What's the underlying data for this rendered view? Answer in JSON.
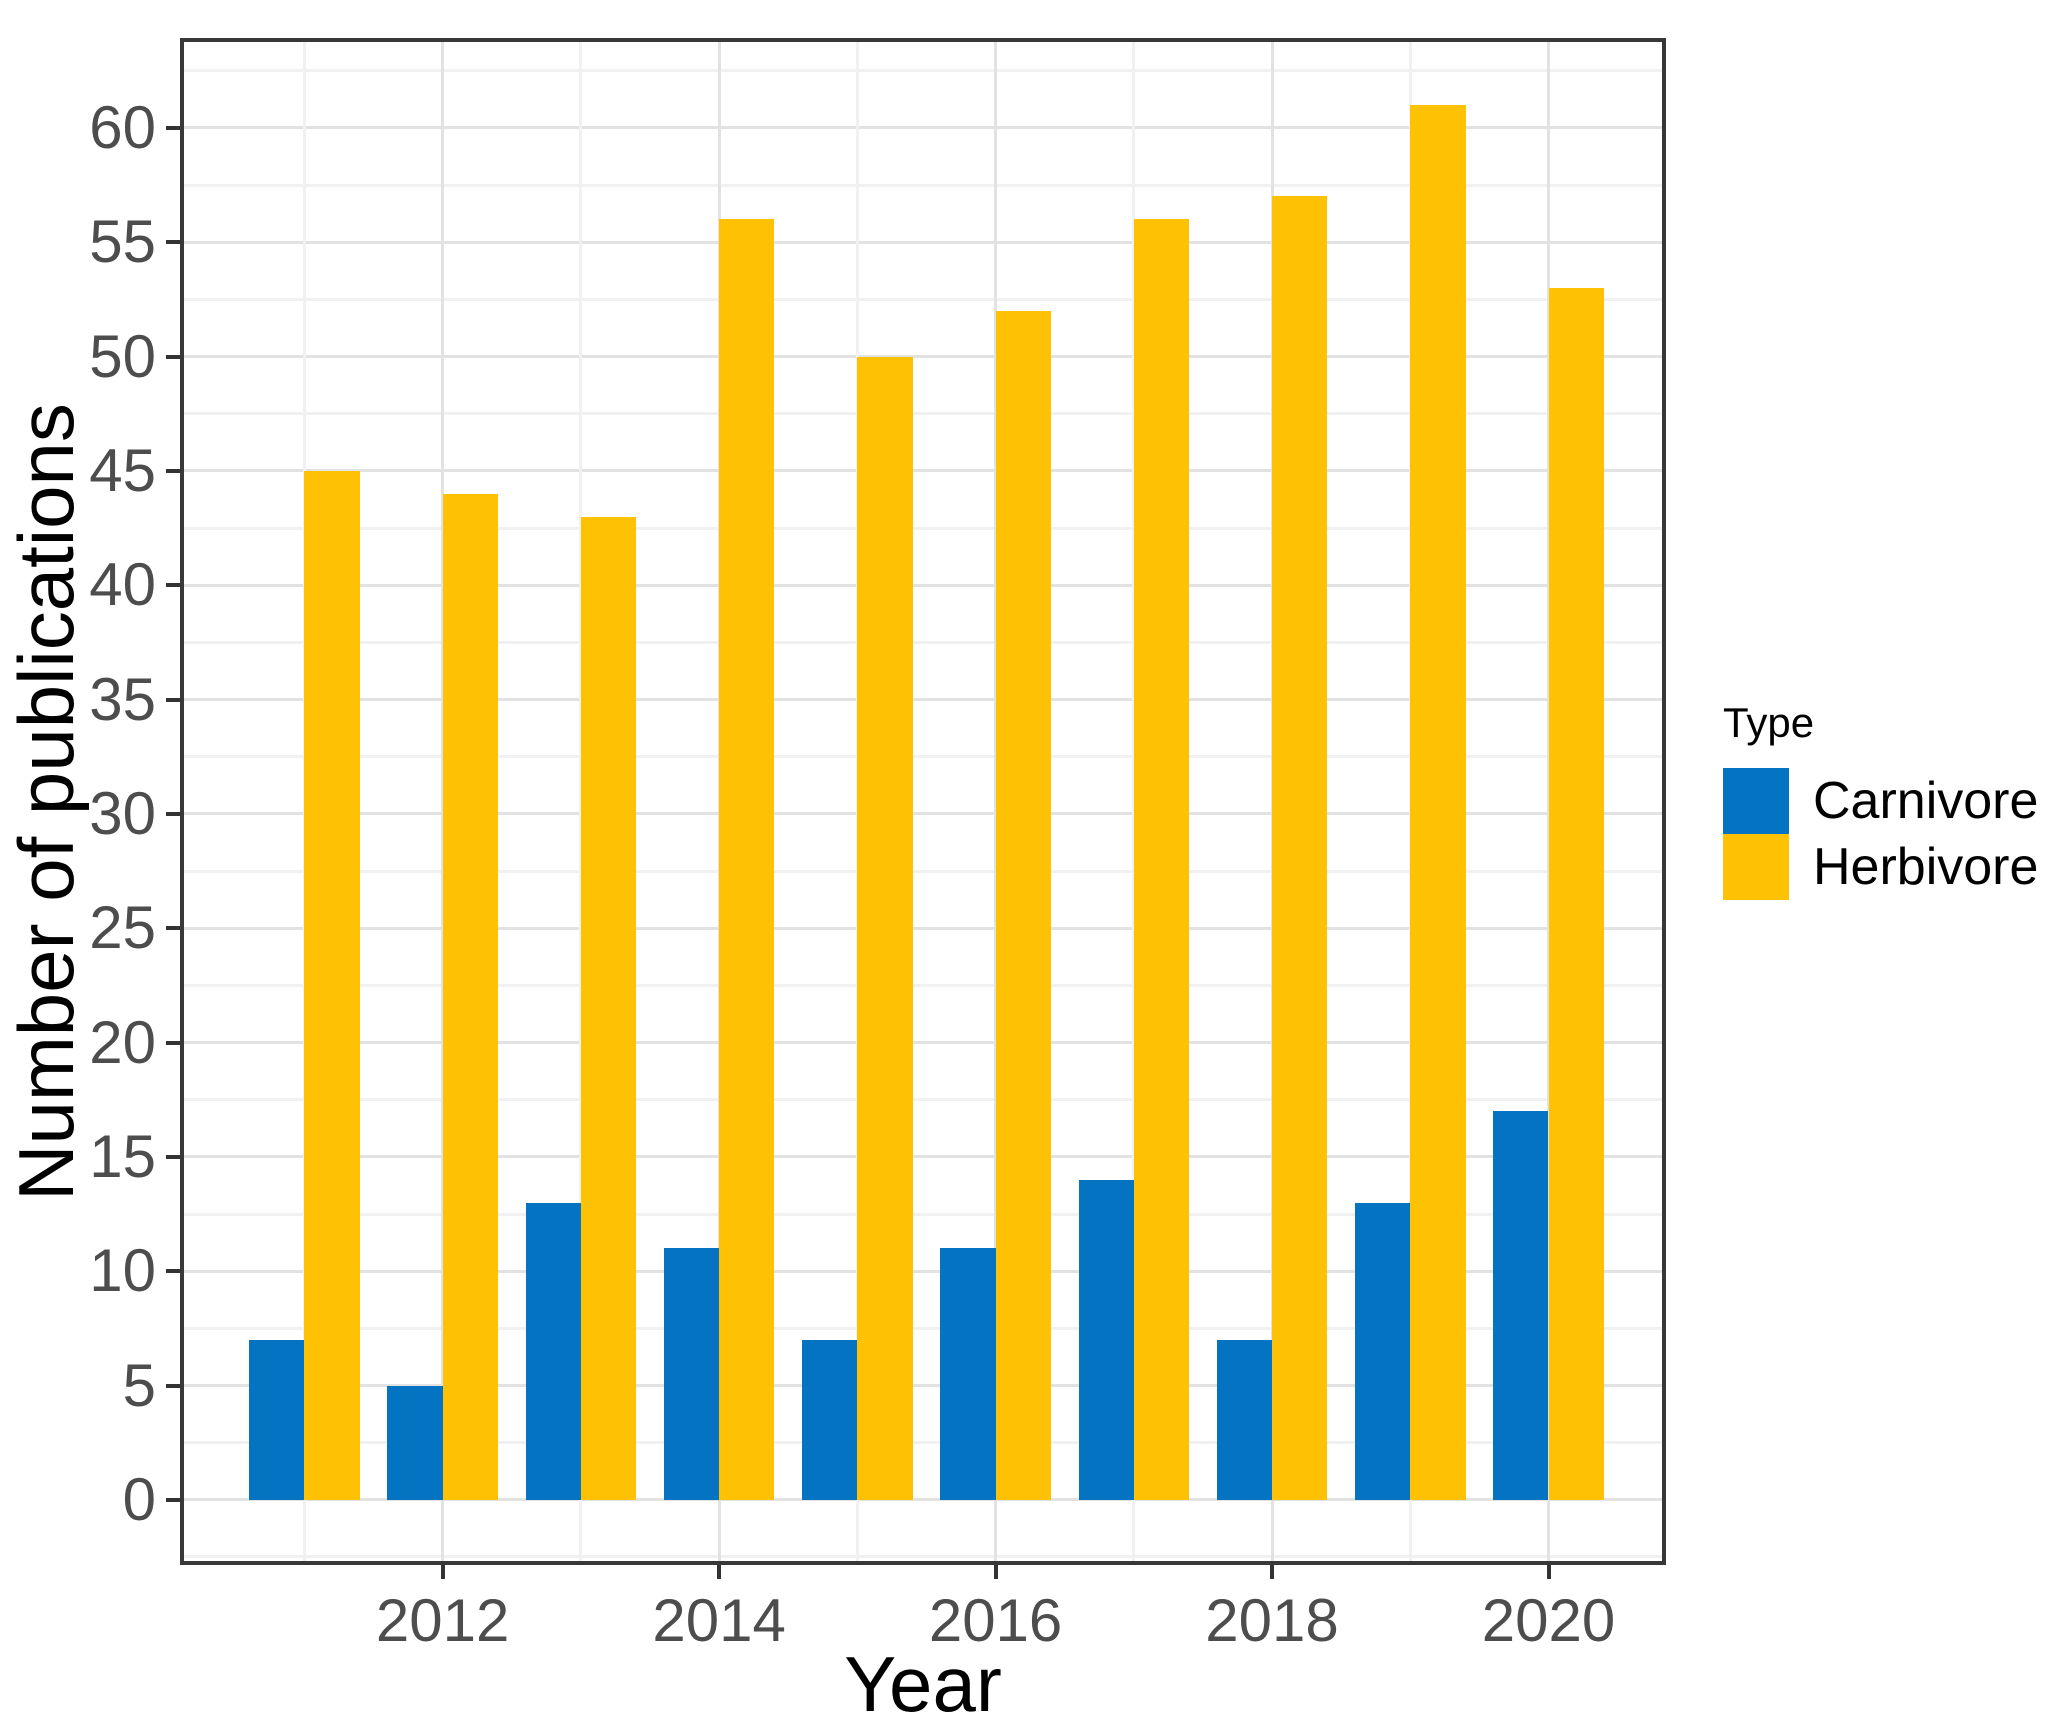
{
  "chart_data": {
    "type": "bar",
    "title": "",
    "xlabel": "Year",
    "ylabel": "Number of publications",
    "categories": [
      2011,
      2012,
      2013,
      2014,
      2015,
      2016,
      2017,
      2018,
      2019,
      2020
    ],
    "series": [
      {
        "name": "Carnivore",
        "color": "#0473C2",
        "values": [
          7,
          5,
          13,
          11,
          7,
          11,
          14,
          7,
          13,
          17
        ]
      },
      {
        "name": "Herbivore",
        "color": "#FFC103",
        "values": [
          45,
          44,
          43,
          56,
          50,
          52,
          56,
          57,
          61,
          53
        ]
      }
    ],
    "legend": {
      "title": "Type",
      "position": "right"
    },
    "x_ticks": [
      2012,
      2014,
      2016,
      2018,
      2020
    ],
    "y_ticks": [
      0,
      5,
      10,
      15,
      20,
      25,
      30,
      35,
      40,
      45,
      50,
      55,
      60
    ],
    "y_minor_ticks": [
      -2.5,
      2.5,
      7.5,
      12.5,
      17.5,
      22.5,
      27.5,
      32.5,
      37.5,
      42.5,
      47.5,
      52.5,
      57.5,
      62.5
    ],
    "xlim": [
      2010.1,
      2020.85
    ],
    "ylim": [
      -2.85,
      63.93
    ],
    "bar_half_width_years": 0.4,
    "grid": true,
    "colors": {
      "grid_major": "#e2e2e2",
      "grid_minor": "#f1f1f1",
      "panel_border": "#383838",
      "tick_mark": "#333333",
      "tick_label": "#4d4d4d",
      "axis_title": "#000000",
      "background": "#ffffff"
    }
  }
}
